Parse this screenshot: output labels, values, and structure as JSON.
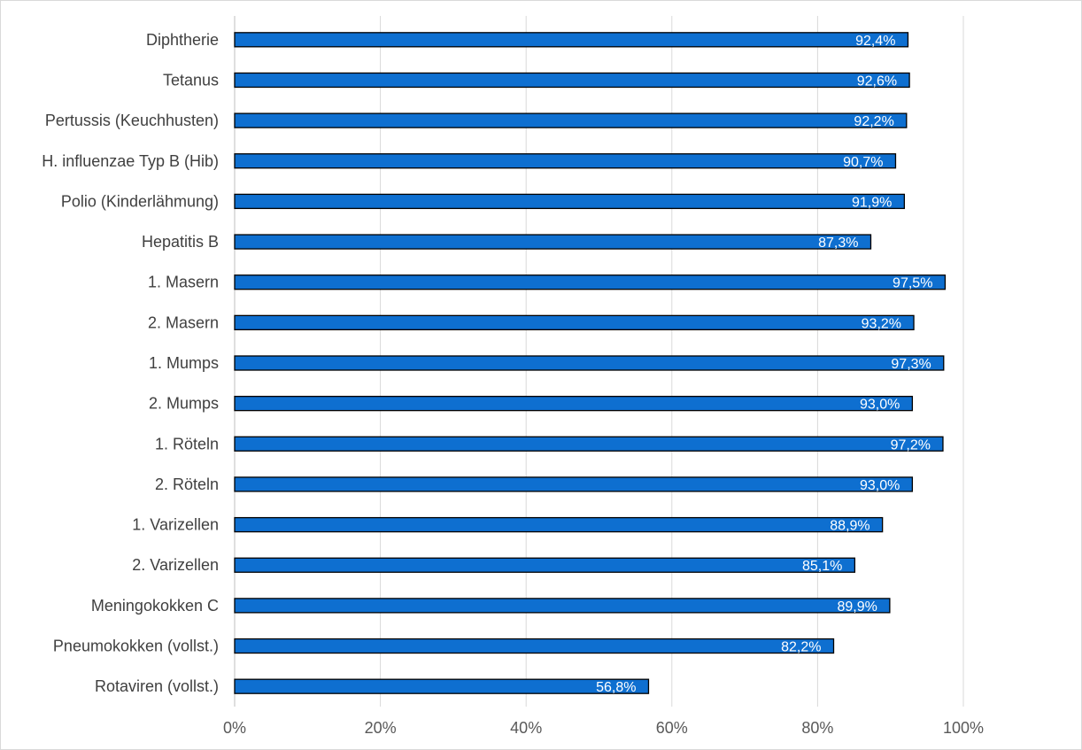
{
  "chart_data": {
    "type": "bar",
    "orientation": "horizontal",
    "title": "",
    "xlabel": "",
    "ylabel": "",
    "categories": [
      "Diphtherie",
      "Tetanus",
      "Pertussis (Keuchhusten)",
      "H. influenzae Typ B (Hib)",
      "Polio (Kinderlähmung)",
      "Hepatitis B",
      "1. Masern",
      "2. Masern",
      "1. Mumps",
      "2. Mumps",
      "1. Röteln",
      "2. Röteln",
      "1. Varizellen",
      "2. Varizellen",
      "Meningokokken C",
      "Pneumokokken (vollst.)",
      "Rotaviren (vollst.)"
    ],
    "values": [
      92.4,
      92.6,
      92.2,
      90.7,
      91.9,
      87.3,
      97.5,
      93.2,
      97.3,
      93.0,
      97.2,
      93.0,
      88.9,
      85.1,
      89.9,
      82.2,
      56.8
    ],
    "value_labels": [
      "92,4%",
      "92,6%",
      "92,2%",
      "90,7%",
      "91,9%",
      "87,3%",
      "97,5%",
      "93,2%",
      "97,3%",
      "93,0%",
      "97,2%",
      "93,0%",
      "88,9%",
      "85,1%",
      "89,9%",
      "82,2%",
      "56,8%"
    ],
    "xlim": [
      0,
      115
    ],
    "xticks": [
      0,
      20,
      40,
      60,
      80,
      100
    ],
    "xtick_labels": [
      "0%",
      "20%",
      "40%",
      "60%",
      "80%",
      "100%"
    ],
    "grid": true,
    "legend": "none",
    "bar_color": "#0E6FD0",
    "bar_edge_color": "#000000",
    "grid_color": "#d9d9d9"
  }
}
